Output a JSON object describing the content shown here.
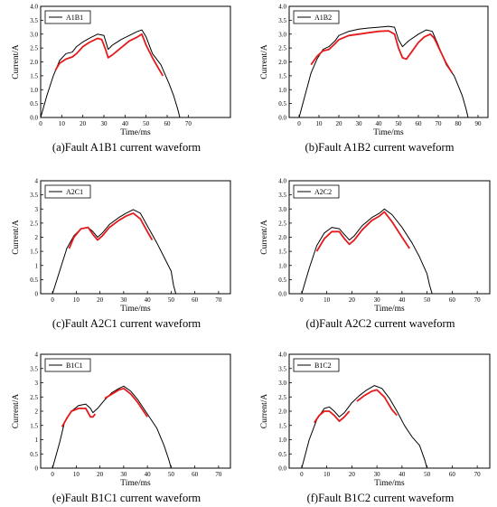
{
  "colors": {
    "reference": "#000000",
    "diagnosed": "#e41a1c"
  },
  "chart_data": [
    {
      "type": "line",
      "caption": "(a)Fault A1B1 current waveform",
      "xlabel": "Time/ms",
      "ylabel": "Current/A",
      "legend": "A1B1",
      "xlim": [
        0,
        90
      ],
      "ylim": [
        0,
        4.0
      ],
      "xticks": [
        0,
        10,
        20,
        30,
        40,
        50,
        60,
        70
      ],
      "yticks": [
        0,
        0.5,
        1.0,
        1.5,
        2.0,
        2.5,
        3.0,
        3.5,
        4.0
      ],
      "ytick_labels": [
        "0.0",
        "0.5",
        "1.0",
        "1.5",
        "2.0",
        "2.5",
        "3.0",
        "3.5",
        "4.0"
      ],
      "series": [
        {
          "name": "A1B1",
          "color": "#000000",
          "x": [
            0,
            3,
            6,
            9,
            12,
            15,
            17,
            20,
            23,
            27,
            30,
            32,
            34,
            38,
            42,
            46,
            48,
            50,
            53,
            57,
            61,
            63,
            65,
            66
          ],
          "y": [
            0,
            0.8,
            1.5,
            2.05,
            2.3,
            2.35,
            2.55,
            2.72,
            2.85,
            3.0,
            2.95,
            2.45,
            2.6,
            2.8,
            2.95,
            3.1,
            3.15,
            2.9,
            2.3,
            1.9,
            1.2,
            0.8,
            0.3,
            0
          ]
        },
        {
          "color": "#e41a1c",
          "x": [
            7,
            9,
            12,
            15,
            17,
            20,
            23,
            27,
            29,
            31,
            32,
            34,
            38,
            42,
            46,
            48,
            50,
            53,
            56,
            58
          ],
          "y": [
            1.7,
            1.95,
            2.1,
            2.18,
            2.3,
            2.55,
            2.7,
            2.85,
            2.8,
            2.4,
            2.15,
            2.25,
            2.5,
            2.75,
            2.9,
            3.0,
            2.6,
            2.15,
            1.75,
            1.5
          ]
        }
      ]
    },
    {
      "type": "line",
      "caption": "(b)Fault A1B2 current waveform",
      "xlabel": "Time/ms",
      "ylabel": "Current/A",
      "legend": "A1B2",
      "xlim": [
        -5,
        95
      ],
      "ylim": [
        0,
        4.0
      ],
      "xticks": [
        0,
        10,
        20,
        30,
        40,
        50,
        60,
        70,
        80,
        90
      ],
      "yticks": [
        0,
        0.5,
        1.0,
        1.5,
        2.0,
        2.5,
        3.0,
        3.5,
        4.0
      ],
      "ytick_labels": [
        "0.0",
        "0.5",
        "1.0",
        "1.5",
        "2.0",
        "2.5",
        "3.0",
        "3.5",
        "4.0"
      ],
      "series": [
        {
          "name": "A1B2",
          "color": "#000000",
          "x": [
            0,
            3,
            6,
            9,
            12,
            15,
            18,
            20,
            25,
            30,
            35,
            40,
            45,
            48,
            50,
            52,
            55,
            60,
            64,
            67,
            70,
            74,
            78,
            82,
            84,
            85
          ],
          "y": [
            0,
            0.8,
            1.6,
            2.1,
            2.45,
            2.55,
            2.75,
            2.95,
            3.1,
            3.18,
            3.22,
            3.25,
            3.28,
            3.25,
            2.8,
            2.55,
            2.75,
            3.0,
            3.15,
            3.1,
            2.6,
            1.9,
            1.5,
            0.8,
            0.3,
            0
          ]
        },
        {
          "color": "#e41a1c",
          "x": [
            6,
            9,
            12,
            15,
            18,
            20,
            25,
            30,
            35,
            40,
            45,
            48,
            50,
            52,
            54,
            57,
            60,
            63,
            66,
            68,
            70,
            74,
            77
          ],
          "y": [
            1.9,
            2.2,
            2.4,
            2.45,
            2.65,
            2.8,
            2.95,
            3.0,
            3.05,
            3.1,
            3.12,
            3.0,
            2.5,
            2.15,
            2.1,
            2.4,
            2.7,
            2.9,
            3.0,
            2.85,
            2.55,
            1.95,
            1.6
          ]
        }
      ]
    },
    {
      "type": "line",
      "caption": "(c)Fault A2C1 current waveform",
      "xlabel": "Time/ms",
      "ylabel": "Current/A",
      "legend": "A2C1",
      "xlim": [
        -5,
        75
      ],
      "ylim": [
        0,
        4.0
      ],
      "xticks": [
        0,
        10,
        20,
        30,
        40,
        50,
        60,
        70
      ],
      "yticks": [
        0,
        0.5,
        1.0,
        1.5,
        2.0,
        2.5,
        3.0,
        3.5,
        4.0
      ],
      "ytick_labels": [
        "0",
        "0.5",
        "1",
        "1.5",
        "2",
        "2.5",
        "3",
        "3.5",
        "4"
      ],
      "series": [
        {
          "name": "A2C1",
          "color": "#000000",
          "x": [
            0,
            3,
            6,
            9,
            12,
            15,
            17,
            19,
            21,
            24,
            28,
            31,
            34,
            37,
            40,
            44,
            47,
            50,
            51,
            52
          ],
          "y": [
            0,
            0.8,
            1.6,
            2.05,
            2.3,
            2.35,
            2.2,
            2.0,
            2.15,
            2.45,
            2.7,
            2.85,
            2.98,
            2.85,
            2.4,
            1.8,
            1.3,
            0.8,
            0.3,
            0
          ]
        },
        {
          "color": "#e41a1c",
          "x": [
            7,
            9,
            12,
            15,
            17,
            19,
            21,
            24,
            28,
            31,
            34,
            37,
            40,
            42
          ],
          "y": [
            1.6,
            2.0,
            2.3,
            2.35,
            2.1,
            1.9,
            2.05,
            2.35,
            2.6,
            2.75,
            2.85,
            2.65,
            2.2,
            1.9
          ]
        }
      ]
    },
    {
      "type": "line",
      "caption": "(d)Fault A2C2 current waveform",
      "xlabel": "Time/ms",
      "ylabel": "Current/A",
      "legend": "A2C2",
      "xlim": [
        -5,
        75
      ],
      "ylim": [
        0,
        4.0
      ],
      "xticks": [
        0,
        10,
        20,
        30,
        40,
        50,
        60,
        70
      ],
      "yticks": [
        0,
        0.5,
        1.0,
        1.5,
        2.0,
        2.5,
        3.0,
        3.5,
        4.0
      ],
      "ytick_labels": [
        "0.0",
        "0.5",
        "1.0",
        "1.5",
        "2.0",
        "2.5",
        "3.0",
        "3.5",
        "4.0"
      ],
      "series": [
        {
          "name": "A2C2",
          "color": "#000000",
          "x": [
            0,
            3,
            6,
            9,
            12,
            15,
            17,
            19,
            21,
            24,
            28,
            31,
            33,
            36,
            40,
            44,
            47,
            50,
            51,
            52
          ],
          "y": [
            0,
            0.9,
            1.7,
            2.15,
            2.35,
            2.3,
            2.1,
            1.9,
            2.05,
            2.4,
            2.7,
            2.85,
            3.0,
            2.8,
            2.35,
            1.8,
            1.3,
            0.7,
            0.3,
            0
          ]
        },
        {
          "color": "#e41a1c",
          "x": [
            6,
            9,
            12,
            15,
            17,
            19,
            21,
            24,
            28,
            31,
            33,
            36,
            40,
            43
          ],
          "y": [
            1.5,
            1.95,
            2.2,
            2.2,
            1.95,
            1.75,
            1.9,
            2.25,
            2.6,
            2.75,
            2.9,
            2.55,
            2.0,
            1.6
          ]
        }
      ]
    },
    {
      "type": "line",
      "caption": "(e)Fault B1C1 current waveform",
      "xlabel": "Time/ms",
      "ylabel": "Current/A",
      "legend": "B1C1",
      "xlim": [
        -5,
        75
      ],
      "ylim": [
        0,
        4.0
      ],
      "xticks": [
        0,
        10,
        20,
        30,
        40,
        50,
        60,
        70
      ],
      "yticks": [
        0,
        0.5,
        1.0,
        1.5,
        2.0,
        2.5,
        3.0,
        3.5,
        4.0
      ],
      "ytick_labels": [
        "0",
        "0.5",
        "1",
        "1.5",
        "2",
        "2.5",
        "3",
        "3.5",
        "4"
      ],
      "series": [
        {
          "name": "B1C1",
          "color": "#000000",
          "x": [
            0,
            3,
            5,
            8,
            11,
            14,
            16,
            17,
            19,
            22,
            25,
            28,
            30,
            33,
            36,
            40,
            44,
            47,
            49,
            50
          ],
          "y": [
            0,
            0.9,
            1.6,
            2.0,
            2.2,
            2.25,
            2.1,
            1.95,
            2.1,
            2.4,
            2.65,
            2.8,
            2.88,
            2.7,
            2.4,
            1.9,
            1.4,
            0.8,
            0.3,
            0
          ]
        },
        {
          "color": "#e41a1c",
          "x": [
            4,
            6,
            8,
            11,
            14,
            15,
            16,
            17,
            18
          ],
          "y": [
            1.45,
            1.75,
            2.0,
            2.1,
            2.1,
            1.95,
            1.8,
            1.8,
            1.9
          ]
        },
        {
          "color": "#e41a1c",
          "x": [
            22,
            25,
            28,
            30,
            33,
            36,
            40
          ],
          "y": [
            2.45,
            2.6,
            2.75,
            2.8,
            2.6,
            2.3,
            1.8
          ]
        }
      ]
    },
    {
      "type": "line",
      "caption": "(f)Fault B1C2 current waveform",
      "xlabel": "Time/ms",
      "ylabel": "Current/A",
      "legend": "B1C2",
      "xlim": [
        -5,
        75
      ],
      "ylim": [
        0,
        4.0
      ],
      "xticks": [
        0,
        10,
        20,
        30,
        40,
        50,
        60,
        70
      ],
      "yticks": [
        0,
        0.5,
        1.0,
        1.5,
        2.0,
        2.5,
        3.0,
        3.5,
        4.0
      ],
      "ytick_labels": [
        "0.0",
        "0.5",
        "1.0",
        "1.5",
        "2.0",
        "2.5",
        "3.0",
        "3.5",
        "4.0"
      ],
      "series": [
        {
          "name": "B1C2",
          "color": "#000000",
          "x": [
            0,
            3,
            6,
            9,
            11,
            13,
            15,
            17,
            20,
            23,
            26,
            29,
            32,
            35,
            38,
            41,
            44,
            47,
            49,
            50
          ],
          "y": [
            0,
            1.0,
            1.7,
            2.1,
            2.15,
            2.0,
            1.8,
            1.95,
            2.3,
            2.55,
            2.75,
            2.9,
            2.8,
            2.45,
            2.0,
            1.5,
            1.1,
            0.8,
            0.3,
            0
          ]
        },
        {
          "color": "#e41a1c",
          "x": [
            5,
            7,
            9,
            11,
            13,
            15,
            17,
            19
          ],
          "y": [
            1.6,
            1.85,
            2.0,
            2.0,
            1.85,
            1.65,
            1.8,
            2.0
          ]
        },
        {
          "color": "#e41a1c",
          "x": [
            22,
            25,
            28,
            30,
            33,
            36,
            38
          ],
          "y": [
            2.35,
            2.55,
            2.7,
            2.75,
            2.5,
            2.05,
            1.85
          ]
        }
      ]
    }
  ]
}
